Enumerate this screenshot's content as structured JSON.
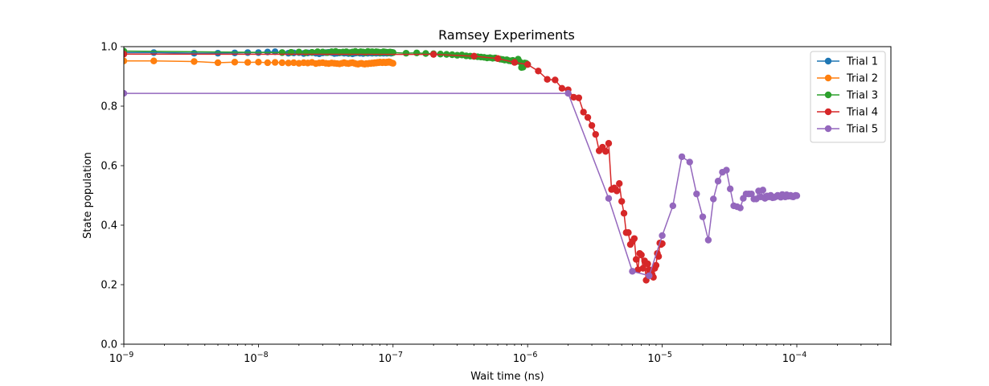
{
  "chart_data": {
    "type": "line",
    "title": "Ramsey Experiments",
    "xlabel": "Wait time (ns)",
    "ylabel": "State population",
    "xscale": "log",
    "xlim": [
      1e-09,
      0.0005
    ],
    "ylim": [
      0.0,
      1.0
    ],
    "x_ticks": [
      {
        "value": 1e-09,
        "base": "10",
        "exp": "−9"
      },
      {
        "value": 1e-08,
        "base": "10",
        "exp": "−8"
      },
      {
        "value": 1e-07,
        "base": "10",
        "exp": "−7"
      },
      {
        "value": 1e-06,
        "base": "10",
        "exp": "−6"
      },
      {
        "value": 1e-05,
        "base": "10",
        "exp": "−5"
      },
      {
        "value": 0.0001,
        "base": "10",
        "exp": "−4"
      }
    ],
    "y_ticks": [
      {
        "value": 0.0,
        "label": "0.0"
      },
      {
        "value": 0.2,
        "label": "0.2"
      },
      {
        "value": 0.4,
        "label": "0.4"
      },
      {
        "value": 0.6,
        "label": "0.6"
      },
      {
        "value": 0.8,
        "label": "0.8"
      },
      {
        "value": 1.0,
        "label": "1.0"
      }
    ],
    "grid": false,
    "legend_position": "top-right",
    "series": [
      {
        "name": "Trial 1",
        "color": "#1f77b4",
        "x": [
          1e-09,
          1.67e-09,
          3.33e-09,
          5e-09,
          6.67e-09,
          8.33e-09,
          1e-08,
          1.17e-08,
          1.33e-08,
          1.5e-08,
          1.67e-08,
          1.83e-08,
          2e-08,
          2.17e-08,
          2.33e-08,
          2.5e-08,
          2.67e-08,
          2.83e-08,
          3e-08,
          3.17e-08,
          3.33e-08,
          3.5e-08,
          3.67e-08,
          3.83e-08,
          4e-08,
          4.17e-08,
          4.33e-08,
          4.5e-08,
          4.67e-08,
          4.83e-08,
          5e-08,
          5.17e-08,
          5.33e-08,
          5.5e-08,
          5.67e-08,
          5.83e-08,
          6e-08,
          6.17e-08,
          6.33e-08,
          6.5e-08,
          6.67e-08,
          6.83e-08,
          7e-08,
          7.17e-08,
          7.33e-08,
          7.5e-08,
          7.67e-08,
          7.83e-08,
          8e-08,
          8.17e-08,
          8.33e-08,
          8.5e-08,
          8.67e-08,
          8.83e-08,
          9e-08,
          9.17e-08,
          9.33e-08,
          9.5e-08,
          9.67e-08,
          9.83e-08,
          1e-07
        ],
        "y": [
          0.98,
          0.98,
          0.978,
          0.978,
          0.979,
          0.98,
          0.98,
          0.982,
          0.983,
          0.98,
          0.978,
          0.979,
          0.98,
          0.977,
          0.979,
          0.98,
          0.978,
          0.976,
          0.979,
          0.98,
          0.981,
          0.98,
          0.977,
          0.978,
          0.979,
          0.98,
          0.978,
          0.979,
          0.977,
          0.98,
          0.976,
          0.978,
          0.979,
          0.98,
          0.978,
          0.979,
          0.977,
          0.98,
          0.979,
          0.978,
          0.98,
          0.979,
          0.978,
          0.98,
          0.979,
          0.978,
          0.98,
          0.979,
          0.978,
          0.98,
          0.979,
          0.978,
          0.98,
          0.979,
          0.978,
          0.98,
          0.979,
          0.98,
          0.978,
          0.979,
          0.98
        ]
      },
      {
        "name": "Trial 2",
        "color": "#ff7f0e",
        "x": [
          1e-09,
          1.67e-09,
          3.33e-09,
          5e-09,
          6.67e-09,
          8.33e-09,
          1e-08,
          1.17e-08,
          1.33e-08,
          1.5e-08,
          1.67e-08,
          1.83e-08,
          2e-08,
          2.17e-08,
          2.33e-08,
          2.5e-08,
          2.67e-08,
          2.83e-08,
          3e-08,
          3.17e-08,
          3.33e-08,
          3.5e-08,
          3.67e-08,
          3.83e-08,
          4e-08,
          4.17e-08,
          4.33e-08,
          4.5e-08,
          4.67e-08,
          4.83e-08,
          5e-08,
          5.17e-08,
          5.33e-08,
          5.5e-08,
          5.67e-08,
          5.83e-08,
          6e-08,
          6.17e-08,
          6.33e-08,
          6.5e-08,
          6.67e-08,
          6.83e-08,
          7e-08,
          7.17e-08,
          7.33e-08,
          7.5e-08,
          7.67e-08,
          7.83e-08,
          8e-08,
          8.17e-08,
          8.33e-08,
          8.5e-08,
          8.67e-08,
          8.83e-08,
          9e-08,
          9.17e-08,
          9.33e-08,
          9.5e-08,
          9.67e-08,
          9.83e-08,
          1e-07
        ],
        "y": [
          0.952,
          0.952,
          0.95,
          0.946,
          0.948,
          0.947,
          0.948,
          0.946,
          0.947,
          0.946,
          0.945,
          0.946,
          0.944,
          0.946,
          0.945,
          0.947,
          0.943,
          0.945,
          0.946,
          0.944,
          0.943,
          0.945,
          0.944,
          0.943,
          0.942,
          0.944,
          0.946,
          0.944,
          0.943,
          0.945,
          0.946,
          0.944,
          0.942,
          0.941,
          0.943,
          0.944,
          0.942,
          0.941,
          0.943,
          0.942,
          0.944,
          0.943,
          0.945,
          0.944,
          0.946,
          0.945,
          0.947,
          0.946,
          0.948,
          0.947,
          0.946,
          0.948,
          0.947,
          0.946,
          0.948,
          0.947,
          0.949,
          0.948,
          0.946,
          0.945,
          0.944
        ]
      },
      {
        "name": "Trial 3",
        "color": "#2ca02c",
        "x": [
          1e-09,
          1.5e-08,
          1.75e-08,
          2e-08,
          2.25e-08,
          2.5e-08,
          2.75e-08,
          3e-08,
          3.25e-08,
          3.5e-08,
          3.75e-08,
          4e-08,
          4.25e-08,
          4.5e-08,
          4.75e-08,
          5e-08,
          5.25e-08,
          5.5e-08,
          5.75e-08,
          6e-08,
          6.25e-08,
          6.5e-08,
          6.75e-08,
          7e-08,
          7.25e-08,
          7.5e-08,
          7.75e-08,
          8e-08,
          8.25e-08,
          8.5e-08,
          8.75e-08,
          9e-08,
          9.25e-08,
          9.5e-08,
          9.75e-08,
          1e-07,
          1.25e-07,
          1.5e-07,
          1.75e-07,
          2e-07,
          2.25e-07,
          2.5e-07,
          2.75e-07,
          3e-07,
          3.25e-07,
          3.5e-07,
          3.75e-07,
          4e-07,
          4.25e-07,
          4.5e-07,
          4.75e-07,
          5e-07,
          5.25e-07,
          5.5e-07,
          5.75e-07,
          6e-07,
          6.25e-07,
          6.5e-07,
          6.75e-07,
          7e-07,
          7.25e-07,
          7.5e-07,
          7.75e-07,
          8e-07,
          8.25e-07,
          8.5e-07,
          8.75e-07,
          9e-07,
          9.25e-07,
          9.5e-07,
          9.75e-07,
          1e-06
        ],
        "y": [
          0.985,
          0.98,
          0.981,
          0.982,
          0.98,
          0.981,
          0.983,
          0.982,
          0.98,
          0.983,
          0.984,
          0.981,
          0.982,
          0.983,
          0.98,
          0.982,
          0.984,
          0.981,
          0.983,
          0.982,
          0.98,
          0.984,
          0.982,
          0.983,
          0.981,
          0.983,
          0.982,
          0.98,
          0.981,
          0.983,
          0.982,
          0.981,
          0.98,
          0.982,
          0.981,
          0.98,
          0.978,
          0.979,
          0.977,
          0.976,
          0.975,
          0.974,
          0.973,
          0.971,
          0.972,
          0.969,
          0.968,
          0.967,
          0.966,
          0.965,
          0.964,
          0.962,
          0.963,
          0.961,
          0.962,
          0.96,
          0.958,
          0.957,
          0.955,
          0.956,
          0.953,
          0.952,
          0.954,
          0.951,
          0.95,
          0.958,
          0.949,
          0.93,
          0.931,
          0.945,
          0.944,
          0.94
        ]
      },
      {
        "name": "Trial 4",
        "color": "#d62728",
        "x": [
          1e-09,
          2e-07,
          4e-07,
          6e-07,
          8e-07,
          1e-06,
          1.2e-06,
          1.4e-06,
          1.6e-06,
          1.8e-06,
          2e-06,
          2.2e-06,
          2.4e-06,
          2.6e-06,
          2.8e-06,
          3e-06,
          3.2e-06,
          3.4e-06,
          3.6e-06,
          3.8e-06,
          4e-06,
          4.2e-06,
          4.4e-06,
          4.6e-06,
          4.8e-06,
          5e-06,
          5.2e-06,
          5.4e-06,
          5.6e-06,
          5.8e-06,
          6e-06,
          6.2e-06,
          6.4e-06,
          6.6e-06,
          6.8e-06,
          7e-06,
          7.2e-06,
          7.4e-06,
          7.6e-06,
          7.8e-06,
          8e-06,
          8.2e-06,
          8.4e-06,
          8.6e-06,
          8.8e-06,
          9e-06,
          9.2e-06,
          9.4e-06,
          9.6e-06,
          9.8e-06,
          1e-05
        ],
        "y": [
          0.975,
          0.974,
          0.968,
          0.96,
          0.947,
          0.94,
          0.918,
          0.89,
          0.888,
          0.86,
          0.855,
          0.83,
          0.828,
          0.78,
          0.762,
          0.735,
          0.705,
          0.65,
          0.662,
          0.648,
          0.675,
          0.52,
          0.525,
          0.515,
          0.54,
          0.48,
          0.44,
          0.375,
          0.375,
          0.335,
          0.345,
          0.355,
          0.285,
          0.25,
          0.305,
          0.3,
          0.255,
          0.28,
          0.215,
          0.27,
          0.25,
          0.235,
          0.235,
          0.225,
          0.255,
          0.265,
          0.305,
          0.295,
          0.34,
          0.335,
          0.338
        ]
      },
      {
        "name": "Trial 5",
        "color": "#9467bd",
        "x": [
          1e-09,
          2e-06,
          4e-06,
          6e-06,
          8e-06,
          1e-05,
          1.2e-05,
          1.4e-05,
          1.6e-05,
          1.8e-05,
          2e-05,
          2.2e-05,
          2.4e-05,
          2.6e-05,
          2.8e-05,
          3e-05,
          3.2e-05,
          3.4e-05,
          3.6e-05,
          3.8e-05,
          4e-05,
          4.2e-05,
          4.4e-05,
          4.6e-05,
          4.8e-05,
          5e-05,
          5.2e-05,
          5.4e-05,
          5.6e-05,
          5.8e-05,
          6e-05,
          6.2e-05,
          6.4e-05,
          6.6e-05,
          6.8e-05,
          7e-05,
          7.2e-05,
          7.4e-05,
          7.6e-05,
          7.8e-05,
          8e-05,
          8.2e-05,
          8.4e-05,
          8.6e-05,
          8.8e-05,
          9e-05,
          9.2e-05,
          9.4e-05,
          9.6e-05,
          9.8e-05,
          0.0001
        ],
        "y": [
          0.843,
          0.843,
          0.49,
          0.245,
          0.23,
          0.365,
          0.465,
          0.63,
          0.612,
          0.505,
          0.428,
          0.35,
          0.488,
          0.548,
          0.578,
          0.585,
          0.522,
          0.465,
          0.462,
          0.458,
          0.49,
          0.505,
          0.505,
          0.505,
          0.488,
          0.488,
          0.515,
          0.495,
          0.518,
          0.49,
          0.498,
          0.495,
          0.5,
          0.492,
          0.493,
          0.496,
          0.5,
          0.498,
          0.494,
          0.503,
          0.5,
          0.495,
          0.502,
          0.497,
          0.498,
          0.5,
          0.496,
          0.495,
          0.498,
          0.5,
          0.499
        ]
      }
    ]
  }
}
